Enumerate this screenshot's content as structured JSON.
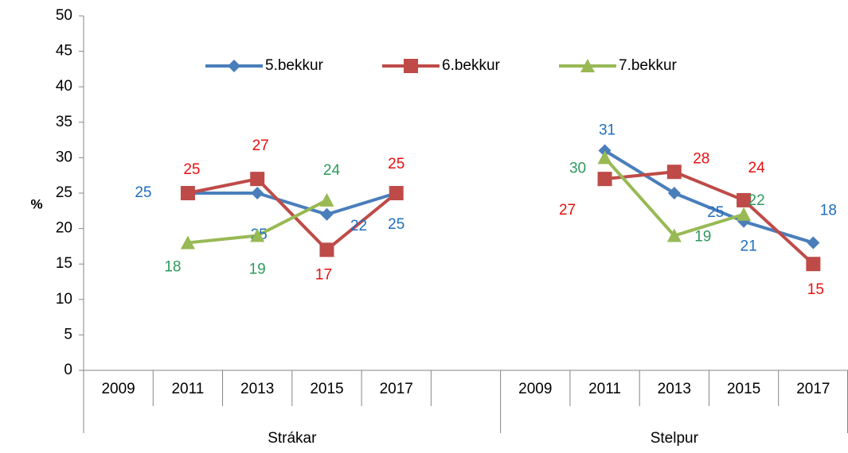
{
  "chart_data": {
    "type": "line",
    "y_label": "%",
    "groups": [
      {
        "name": "Strákar",
        "categories": [
          "2009",
          "2011",
          "2013",
          "2015",
          "2017",
          null
        ]
      },
      {
        "name": "Stelpur",
        "categories": [
          "2009",
          "2011",
          "2013",
          "2015",
          "2017"
        ]
      }
    ],
    "series": [
      {
        "name": "5.bekkur",
        "color": "#4a7ebb",
        "label_color": "#1f6fbf",
        "marker": "diamond",
        "values": [
          null,
          25,
          25,
          22,
          25,
          null,
          null,
          31,
          25,
          21,
          18
        ]
      },
      {
        "name": "6.bekkur",
        "color": "#be4b48",
        "label_color": "#e81010",
        "marker": "square",
        "values": [
          null,
          25,
          27,
          17,
          25,
          null,
          null,
          27,
          28,
          24,
          15
        ]
      },
      {
        "name": "7.bekkur",
        "color": "#98b954",
        "label_color": "#2e9a5e",
        "marker": "triangle",
        "values": [
          null,
          18,
          19,
          24,
          null,
          null,
          null,
          30,
          19,
          22,
          null
        ]
      }
    ],
    "ylim": [
      0,
      50
    ],
    "yticks": [
      0,
      5,
      10,
      15,
      20,
      25,
      30,
      35,
      40,
      45,
      50
    ],
    "grid": false,
    "legend": "top"
  }
}
